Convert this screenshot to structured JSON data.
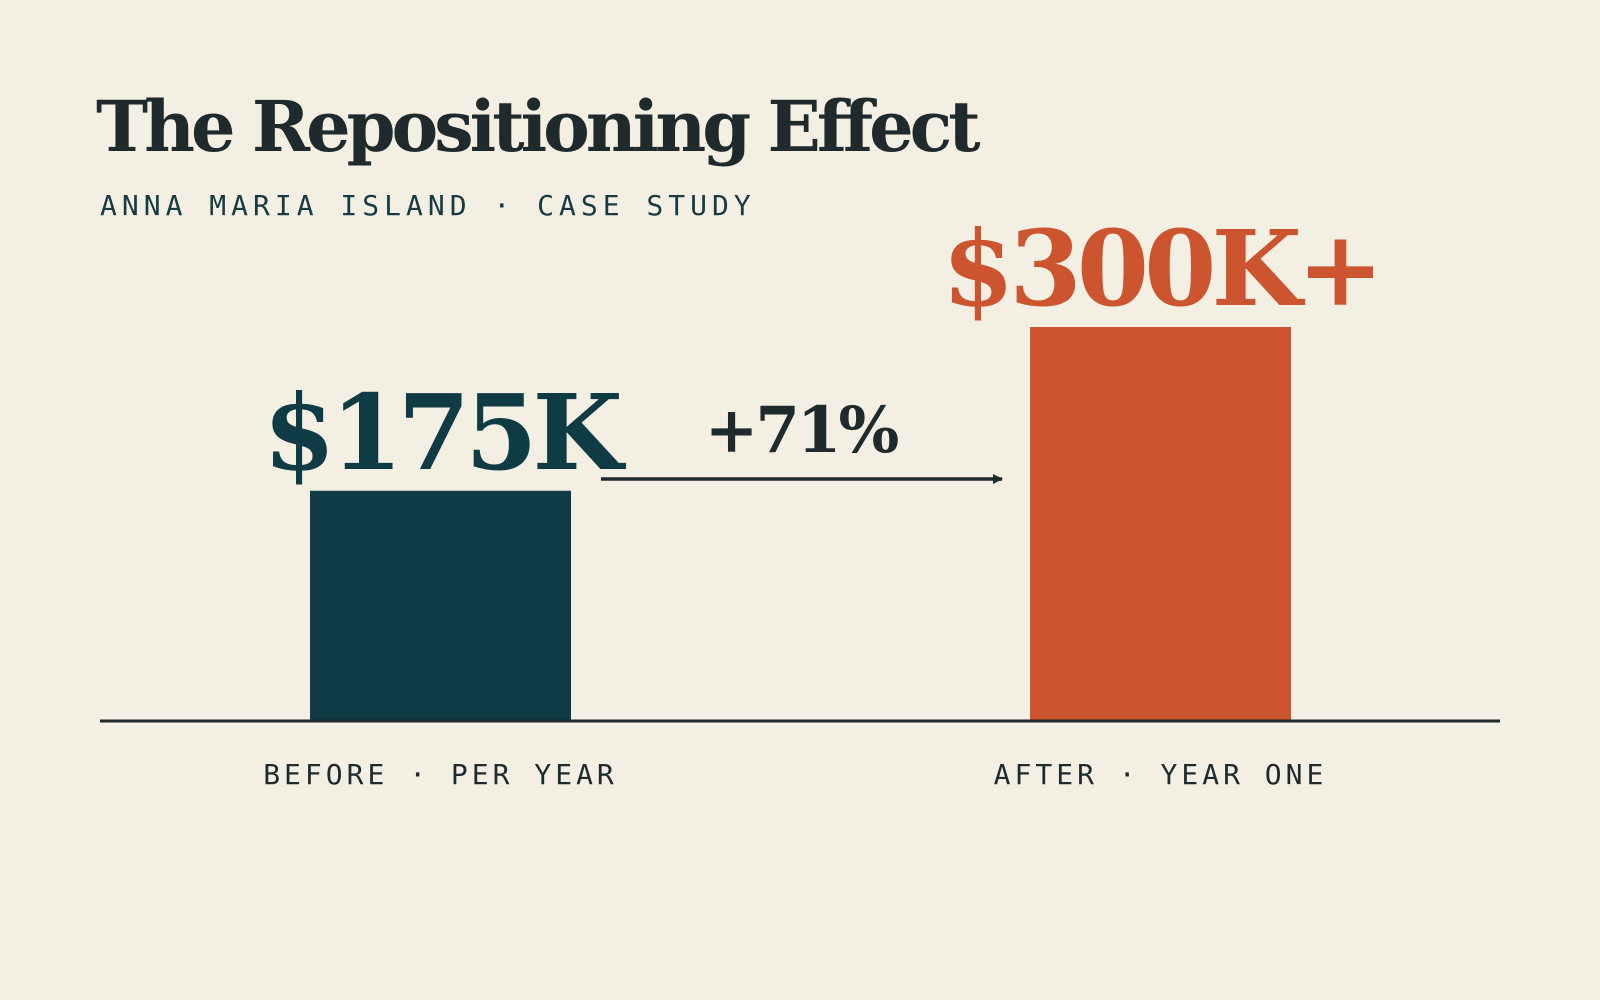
{
  "title": "The Repositioning Effect",
  "subtitle": "ANNA MARIA ISLAND · CASE STUDY",
  "colors": {
    "background": "#f4efe3",
    "before_bar": "#0e3b44",
    "after_bar": "#cc5530",
    "text_dark": "#1e2a2b",
    "axis": "#1e2a2b"
  },
  "chart_data": {
    "type": "bar",
    "title": "The Repositioning Effect",
    "subtitle": "ANNA MARIA ISLAND · CASE STUDY",
    "categories": [
      "BEFORE · PER YEAR",
      "AFTER · YEAR ONE"
    ],
    "values": [
      175000,
      300000
    ],
    "value_labels": [
      "$175K",
      "$300K+"
    ],
    "change_label": "+71%",
    "xlabel": "",
    "ylabel": "",
    "ylim": [
      0,
      300000
    ],
    "grid": false,
    "legend": "none"
  }
}
